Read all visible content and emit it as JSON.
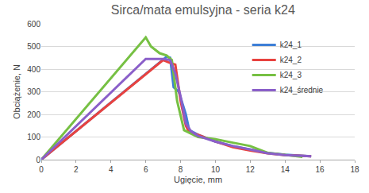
{
  "chart_data": {
    "type": "line",
    "title": "Sirca/mata emulsyjna - seria k24",
    "x_label": "Ugięcie, mm",
    "y_label": "Obciążenie, N",
    "xlim": [
      0,
      18
    ],
    "xticks": [
      0,
      2,
      4,
      6,
      8,
      10,
      12,
      14,
      16,
      18
    ],
    "ylim": [
      0,
      600
    ],
    "yticks": [
      0,
      100,
      200,
      300,
      400,
      500,
      600
    ],
    "grid": true,
    "legend": "upper right",
    "series": [
      {
        "name": "k24_1",
        "color": "#3d7fd6",
        "x": [
          0,
          7.2,
          7.4,
          7.6,
          7.9,
          8.3,
          8.5,
          9,
          10,
          11,
          12,
          13,
          14,
          15.5
        ],
        "values": [
          0,
          455,
          450,
          320,
          300,
          200,
          130,
          110,
          80,
          60,
          45,
          30,
          22,
          15
        ]
      },
      {
        "name": "k24_2",
        "color": "#e8423f",
        "x": [
          0,
          7.0,
          7.3,
          7.7,
          8.0,
          8.3,
          8.5,
          9,
          10,
          11,
          12,
          13,
          14,
          15.5
        ],
        "values": [
          0,
          440,
          430,
          420,
          260,
          150,
          120,
          110,
          80,
          55,
          40,
          28,
          20,
          15
        ]
      },
      {
        "name": "k24_3",
        "color": "#76c043",
        "x": [
          0,
          6.0,
          6.3,
          6.8,
          7.2,
          7.5,
          7.8,
          8.0,
          8.2,
          9,
          10,
          11,
          12,
          13,
          14,
          15
        ],
        "values": [
          0,
          540,
          500,
          470,
          460,
          440,
          260,
          200,
          130,
          100,
          90,
          75,
          60,
          30,
          20,
          12
        ]
      },
      {
        "name": "k24_średnie",
        "color": "#8a5fc9",
        "x": [
          0,
          6.0,
          6.5,
          7.0,
          7.4,
          7.7,
          8.0,
          8.3,
          8.6,
          9,
          10,
          11,
          12,
          13,
          14,
          15.5
        ],
        "values": [
          0,
          445,
          445,
          445,
          440,
          380,
          280,
          160,
          125,
          105,
          80,
          60,
          45,
          28,
          20,
          15
        ]
      }
    ]
  }
}
